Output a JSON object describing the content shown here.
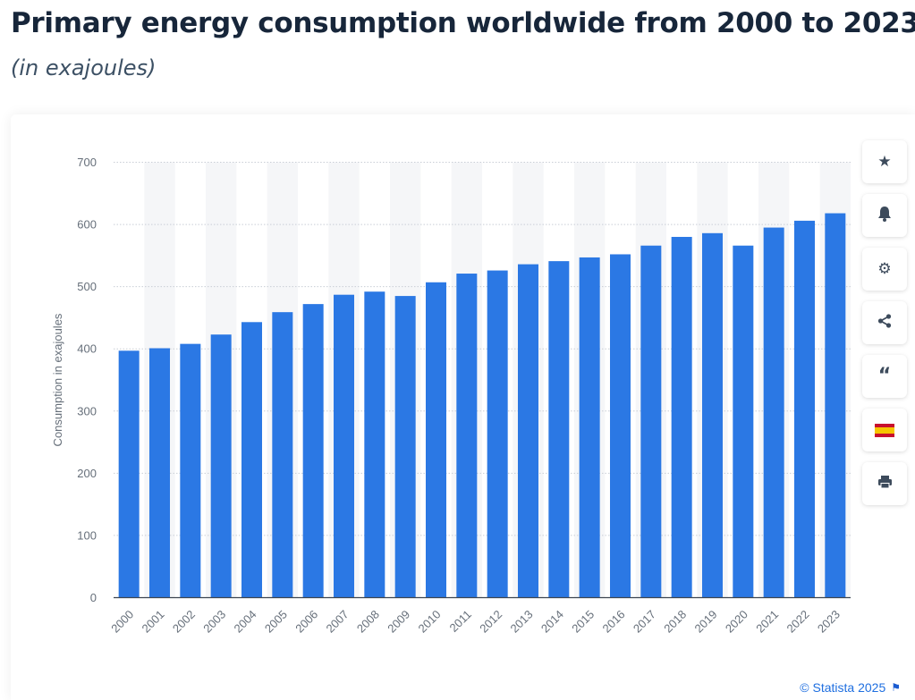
{
  "header": {
    "title": "Primary energy consumption worldwide from 2000 to 2023",
    "subtitle": "(in exajoules)"
  },
  "chart_data": {
    "type": "bar",
    "categories": [
      "2000",
      "2001",
      "2002",
      "2003",
      "2004",
      "2005",
      "2006",
      "2007",
      "2008",
      "2009",
      "2010",
      "2011",
      "2012",
      "2013",
      "2014",
      "2015",
      "2016",
      "2017",
      "2018",
      "2019",
      "2020",
      "2021",
      "2022",
      "2023"
    ],
    "values": [
      397,
      401,
      408,
      423,
      443,
      459,
      472,
      487,
      492,
      485,
      507,
      521,
      526,
      536,
      541,
      547,
      552,
      566,
      580,
      586,
      566,
      595,
      606,
      618
    ],
    "ylabel": "Consumption in exajoules",
    "xlabel": "",
    "ylim": [
      0,
      700
    ],
    "yticks": [
      0,
      100,
      200,
      300,
      400,
      500,
      600,
      700
    ],
    "bar_color": "#2b78e4",
    "grid": true,
    "legend": "none"
  },
  "toolbar": {
    "icons": [
      "star-icon",
      "bell-icon",
      "gear-icon",
      "share-icon",
      "quote-icon",
      "spain-flag-icon",
      "print-icon"
    ]
  },
  "footer": {
    "credit": "© Statista 2025",
    "icon": "flag-icon"
  }
}
